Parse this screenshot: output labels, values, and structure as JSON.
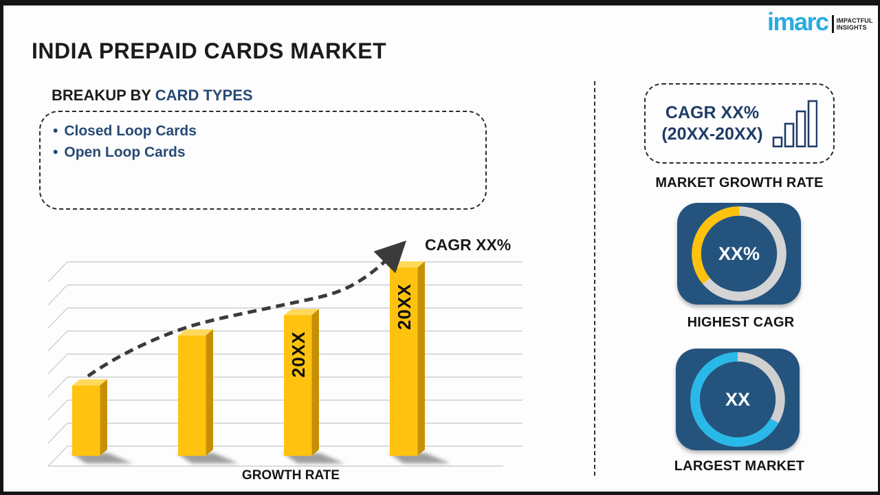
{
  "page": {
    "title": "INDIA PREPAID CARDS MARKET"
  },
  "logo": {
    "brand": "imarc",
    "tagline_line1": "IMPACTFUL",
    "tagline_line2": "INSIGHTS",
    "brand_color": "#29ABE2"
  },
  "breakup": {
    "heading_prefix": "BREAKUP BY ",
    "heading_accent": "CARD TYPES",
    "items": [
      "Closed Loop Cards",
      "Open Loop Cards"
    ]
  },
  "right_panel": {
    "cagr_card": {
      "line1": "CAGR XX%",
      "line2": "(20XX-20XX)"
    },
    "market_growth_rate_label": "MARKET GROWTH RATE",
    "highest_cagr_label": "HIGHEST CAGR",
    "largest_market_label": "LARGEST MARKET"
  },
  "colors": {
    "accent_navy": "#274A74",
    "card_navy": "#1F3C68",
    "bar_yellow": "#FFC20E",
    "bar_side": "#C68F06",
    "bar_top": "#FFD95C",
    "tile_blue": "#24547E",
    "donut_track_gray": "#D4D4D4",
    "donut_cyan": "#29B9E8",
    "gridline": "#C6C6C6",
    "trend": "#3B3B3B",
    "text_black": "#1A1A1A"
  },
  "chart_data": [
    {
      "type": "bar",
      "title": "",
      "categories": [
        "",
        "",
        "20XX",
        "20XX"
      ],
      "values": [
        31,
        53,
        62,
        83
      ],
      "value_unit": "relative-height-percent (placeholder chart, no numeric axis)",
      "xlabel": "GROWTH RATE",
      "ylabel": "",
      "trend_label": "CAGR XX%",
      "grid": true,
      "legend": "none",
      "bar_color": "#FFC20E"
    },
    {
      "type": "pie",
      "subtype": "donut",
      "label": "HIGHEST CAGR",
      "center_text": "XX%",
      "segments": [
        {
          "name": "highlighted-share",
          "color": "#FFC20E",
          "sweep_deg": 130,
          "direction": "ccw-from-top"
        },
        {
          "name": "track",
          "color": "#D4D4D4",
          "sweep_deg": 230
        }
      ]
    },
    {
      "type": "pie",
      "subtype": "donut",
      "label": "LARGEST MARKET",
      "center_text": "XX",
      "segments": [
        {
          "name": "highlighted-share",
          "color": "#29B9E8",
          "sweep_deg": 240,
          "direction": "ccw-from-top"
        },
        {
          "name": "track",
          "color": "#CFCFCF",
          "sweep_deg": 120
        }
      ]
    }
  ]
}
